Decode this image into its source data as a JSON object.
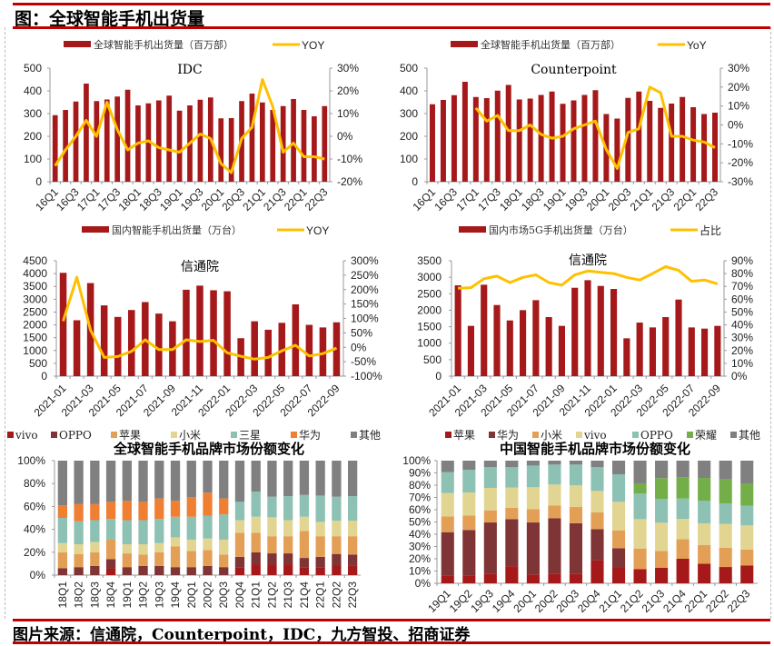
{
  "header": {
    "title": "图：全球智能手机出货量"
  },
  "footer": {
    "source": "图片来源：信通院，Counterpoint，IDC，九方智投、招商证券"
  },
  "colors": {
    "bar_red": "#A5191B",
    "line_yellow": "#FFC000",
    "frame_red": "#C00000",
    "vivo_global": "#A5191B",
    "oppo_global": "#7F3435",
    "apple_global": "#E49F56",
    "xiaomi_global": "#E2D592",
    "samsung_global": "#8CC1B4",
    "huawei_global": "#EE7F33",
    "other": "#808080",
    "honor": "#73AE49"
  },
  "chart_data": [
    {
      "id": "idc",
      "type": "bar+line",
      "title": "IDC",
      "legend": [
        "全球智能手机出货量（百万部）",
        "YOY"
      ],
      "categories": [
        "16Q1",
        "16Q2",
        "16Q3",
        "16Q4",
        "17Q1",
        "17Q2",
        "17Q3",
        "17Q4",
        "18Q1",
        "18Q2",
        "18Q3",
        "18Q4",
        "19Q1",
        "19Q2",
        "19Q3",
        "19Q4",
        "20Q1",
        "20Q2",
        "20Q3",
        "20Q4",
        "21Q1",
        "21Q2",
        "21Q3",
        "21Q4",
        "22Q1",
        "22Q2",
        "22Q3"
      ],
      "x_tick_labels": [
        "16Q1",
        "16Q3",
        "17Q1",
        "17Q3",
        "18Q1",
        "18Q3",
        "19Q1",
        "19Q3",
        "20Q1",
        "20Q3",
        "21Q1",
        "21Q3",
        "22Q1",
        "22Q3"
      ],
      "series": [
        {
          "name": "全球智能手机出货量（百万部）",
          "axis": "left",
          "kind": "bar",
          "values": [
            293,
            316,
            353,
            432,
            355,
            362,
            375,
            405,
            336,
            345,
            358,
            379,
            313,
            336,
            361,
            371,
            279,
            280,
            355,
            388,
            349,
            316,
            333,
            364,
            316,
            288,
            333
          ]
        },
        {
          "name": "YOY",
          "axis": "right",
          "kind": "line",
          "unit": "%",
          "values": [
            -13,
            -6,
            0,
            7,
            0,
            15,
            3,
            -6,
            -3,
            -2,
            -5,
            -6,
            -7,
            -3,
            1,
            -1,
            -12,
            -16,
            -1,
            4,
            25,
            13,
            -7,
            -3,
            -9,
            -9,
            -10
          ]
        }
      ],
      "ylim_left": [
        0,
        500
      ],
      "yticks_left": [
        "0",
        "100",
        "200",
        "300",
        "400",
        "500"
      ],
      "ylim_right": [
        -20,
        30
      ],
      "yticks_right": [
        "-20%",
        "-10%",
        "0%",
        "10%",
        "20%",
        "30%"
      ]
    },
    {
      "id": "counterpoint",
      "type": "bar+line",
      "title": "Counterpoint",
      "legend": [
        "全球智能手机出货量（百万部）",
        "YoY"
      ],
      "categories": [
        "16Q1",
        "16Q2",
        "16Q3",
        "16Q4",
        "17Q1",
        "17Q2",
        "17Q3",
        "17Q4",
        "18Q1",
        "18Q2",
        "18Q3",
        "18Q4",
        "19Q1",
        "19Q2",
        "19Q3",
        "19Q4",
        "20Q1",
        "20Q2",
        "20Q3",
        "20Q4",
        "21Q1",
        "21Q2",
        "21Q3",
        "21Q4",
        "22Q1",
        "22Q2",
        "22Q3"
      ],
      "x_tick_labels": [
        "16Q1",
        "16Q3",
        "17Q1",
        "17Q3",
        "18Q1",
        "18Q3",
        "19Q1",
        "19Q3",
        "20Q1",
        "20Q3",
        "21Q1",
        "21Q3",
        "22Q1",
        "22Q3"
      ],
      "series": [
        {
          "name": "全球智能手机出货量（百万部）",
          "axis": "left",
          "kind": "bar",
          "values": [
            341,
            360,
            381,
            440,
            373,
            368,
            401,
            426,
            362,
            366,
            382,
            397,
            343,
            358,
            382,
            403,
            298,
            278,
            369,
            397,
            356,
            325,
            344,
            373,
            328,
            298,
            304
          ]
        },
        {
          "name": "YoY",
          "axis": "right",
          "kind": "line",
          "unit": "%",
          "values": [
            null,
            null,
            null,
            null,
            9,
            2,
            5,
            -3,
            -3,
            0,
            -5,
            -7,
            -6,
            -2,
            0,
            2,
            -13,
            -23,
            -4,
            -2,
            20,
            17,
            -6,
            -6,
            -8,
            -9,
            -12
          ]
        }
      ],
      "ylim_left": [
        0,
        500
      ],
      "yticks_left": [
        "0",
        "100",
        "200",
        "300",
        "400",
        "500"
      ],
      "ylim_right": [
        -30,
        30
      ],
      "yticks_right": [
        "-30%",
        "-20%",
        "-10%",
        "0%",
        "10%",
        "20%",
        "30%"
      ]
    },
    {
      "id": "caict_domestic",
      "type": "bar+line",
      "title": "信通院",
      "legend": [
        "国内智能手机出货量（万台）",
        "YOY"
      ],
      "categories": [
        "2021-01",
        "2021-02",
        "2021-03",
        "2021-04",
        "2021-05",
        "2021-06",
        "2021-07",
        "2021-08",
        "2021-09",
        "2021-10",
        "2021-11",
        "2021-12",
        "2022-01",
        "2022-02",
        "2022-03",
        "2022-04",
        "2022-05",
        "2022-06",
        "2022-07",
        "2022-08",
        "2022-09"
      ],
      "x_tick_labels": [
        "2021-01",
        "2021-03",
        "2021-05",
        "2021-07",
        "2021-09",
        "2021-11",
        "2022-01",
        "2022-03",
        "2022-05",
        "2022-07",
        "2022-09"
      ],
      "series": [
        {
          "name": "国内智能手机出货量（万台）",
          "axis": "left",
          "kind": "bar",
          "values": [
            4030,
            2180,
            3630,
            2760,
            2310,
            2580,
            2890,
            2440,
            2140,
            3370,
            3530,
            3350,
            3310,
            1480,
            2140,
            1810,
            2080,
            2800,
            2000,
            1900,
            2100
          ]
        },
        {
          "name": "YOY",
          "axis": "right",
          "kind": "line",
          "unit": "%",
          "values": [
            91,
            243,
            60,
            -35,
            -32,
            -14,
            26,
            -8,
            -8,
            26,
            20,
            24,
            -19,
            -31,
            -41,
            -35,
            -12,
            7,
            -30,
            -22,
            -3
          ]
        }
      ],
      "ylim_left": [
        0,
        4500
      ],
      "yticks_left": [
        "0",
        "500",
        "1000",
        "1500",
        "2000",
        "2500",
        "3000",
        "3500",
        "4000",
        "4500"
      ],
      "ylim_right": [
        -100,
        300
      ],
      "yticks_right": [
        "-100%",
        "-50%",
        "0%",
        "50%",
        "100%",
        "150%",
        "200%",
        "250%",
        "300%"
      ]
    },
    {
      "id": "caict_5g",
      "type": "bar+line",
      "title": "信通院",
      "legend": [
        "国内市场5G手机出货量（万台）",
        "占比"
      ],
      "categories": [
        "2021-01",
        "2021-02",
        "2021-03",
        "2021-04",
        "2021-05",
        "2021-06",
        "2021-07",
        "2021-08",
        "2021-09",
        "2021-10",
        "2021-11",
        "2021-12",
        "2022-01",
        "2022-02",
        "2022-03",
        "2022-04",
        "2022-05",
        "2022-06",
        "2022-07",
        "2022-08",
        "2022-09"
      ],
      "x_tick_labels": [
        "2021-01",
        "2021-03",
        "2021-05",
        "2021-07",
        "2021-09",
        "2021-11",
        "2022-01",
        "2022-03",
        "2022-05",
        "2022-07",
        "2022-09"
      ],
      "series": [
        {
          "name": "国内市场5G手机出货量（万台）",
          "axis": "left",
          "kind": "bar",
          "values": [
            2755,
            1525,
            2773,
            2158,
            1690,
            2002,
            2305,
            1791,
            1525,
            2681,
            2911,
            2736,
            2645,
            1148,
            1625,
            1478,
            1791,
            2323,
            1478,
            1442,
            1525
          ]
        },
        {
          "name": "占比",
          "axis": "right",
          "kind": "line",
          "unit": "%",
          "values": [
            68.5,
            69,
            76,
            78,
            73,
            77,
            79,
            73,
            71,
            79,
            82,
            81,
            80,
            77,
            75,
            80,
            85.5,
            82.5,
            74,
            75,
            72
          ]
        }
      ],
      "ylim_left": [
        0,
        3500
      ],
      "yticks_left": [
        "0",
        "500",
        "1000",
        "1500",
        "2000",
        "2500",
        "3000",
        "3500"
      ],
      "ylim_right": [
        0,
        90
      ],
      "yticks_right": [
        "0%",
        "10%",
        "20%",
        "30%",
        "40%",
        "50%",
        "60%",
        "70%",
        "80%",
        "90%"
      ]
    },
    {
      "id": "global_brand_share",
      "type": "stacked_bar",
      "title": "全球智能手机品牌市场份额变化",
      "categories": [
        "18Q1",
        "18Q2",
        "18Q3",
        "18Q4",
        "19Q1",
        "19Q2",
        "19Q3",
        "19Q4",
        "20Q1",
        "20Q2",
        "20Q3",
        "20Q4",
        "21Q1",
        "21Q2",
        "21Q3",
        "21Q4",
        "22Q1",
        "22Q2",
        "22Q3"
      ],
      "series": [
        {
          "name": "vivo",
          "color_key": "vivo_global",
          "values": [
            0,
            0,
            0,
            6,
            0,
            0,
            0,
            0,
            0,
            0,
            0,
            7,
            9.5,
            9.5,
            9.5,
            7,
            7,
            8.7,
            8
          ]
        },
        {
          "name": "OPPO",
          "color_key": "oppo_global",
          "values": [
            6,
            7,
            8,
            8,
            7,
            8,
            8,
            7,
            7,
            8,
            7,
            9,
            10.5,
            9.5,
            9.5,
            8,
            9,
            9.8,
            10
          ]
        },
        {
          "name": "苹果",
          "color_key": "apple_global",
          "values": [
            14,
            11.5,
            12,
            17,
            12,
            10,
            12,
            18,
            14,
            14,
            11,
            21,
            17,
            15,
            15,
            23.6,
            18,
            15.5,
            16
          ]
        },
        {
          "name": "小米",
          "color_key": "xiaomi_global",
          "values": [
            8,
            8.5,
            9,
            0,
            8,
            9,
            8,
            8,
            10,
            10,
            13,
            11,
            14,
            16.5,
            14,
            12.4,
            12.5,
            13.6,
            13.6
          ]
        },
        {
          "name": "三星",
          "color_key": "samsung_global",
          "values": [
            22,
            20,
            19,
            18,
            21,
            21,
            21,
            18,
            20,
            20,
            22,
            16,
            22,
            18,
            21,
            19,
            23,
            20.9,
            21.4
          ]
        },
        {
          "name": "华为",
          "color_key": "huawei_global",
          "values": [
            11,
            15,
            14,
            15,
            17,
            16,
            18,
            14,
            17,
            20,
            14,
            0,
            0,
            0,
            0,
            0,
            0,
            0,
            0
          ]
        },
        {
          "name": "其他",
          "color_key": "other",
          "values": [
            39,
            38,
            38,
            36,
            35,
            36,
            33,
            35,
            32,
            28,
            33,
            36,
            27,
            31.5,
            31,
            30,
            30.5,
            31.5,
            31
          ]
        }
      ],
      "ylim": [
        0,
        100
      ],
      "yticks": [
        "0%",
        "20%",
        "40%",
        "60%",
        "80%",
        "100%"
      ]
    },
    {
      "id": "china_brand_share",
      "type": "stacked_bar",
      "title": "中国智能手机品牌市场份额变化",
      "categories": [
        "19Q1",
        "19Q2",
        "19Q3",
        "19Q4",
        "20Q1",
        "20Q2",
        "20Q3",
        "20Q4",
        "21Q1",
        "21Q2",
        "21Q3",
        "21Q4",
        "22Q1",
        "22Q2",
        "22Q3"
      ],
      "series": [
        {
          "name": "苹果",
          "color_key": "vivo_global",
          "values": [
            6.4,
            6.4,
            7.9,
            14,
            7.2,
            7.9,
            7.9,
            18.8,
            12.6,
            11.6,
            12.6,
            20,
            16,
            13.3,
            14.6
          ]
        },
        {
          "name": "华为",
          "color_key": "oppo_global",
          "values": [
            35.3,
            37.1,
            41.7,
            38.3,
            42.4,
            45.1,
            41.1,
            25.4,
            16,
            0,
            0,
            0,
            0,
            0,
            0
          ]
        },
        {
          "name": "小米",
          "color_key": "apple_global",
          "values": [
            12.9,
            11.8,
            9.9,
            9.2,
            10.9,
            10.5,
            13.2,
            13.6,
            14.6,
            16.8,
            13.8,
            16,
            15.1,
            15.8,
            12.8
          ]
        },
        {
          "name": "vivo",
          "color_key": "xiaomi_global",
          "values": [
            19,
            18.7,
            18.3,
            16.5,
            17.8,
            17,
            17.6,
            17.5,
            23.2,
            23.9,
            23,
            16.6,
            17.8,
            19.3,
            19.8
          ]
        },
        {
          "name": "OPPO",
          "color_key": "samsung_global",
          "values": [
            17,
            18.6,
            16.8,
            16.6,
            17.7,
            16.3,
            17,
            19.3,
            22.5,
            21,
            19.5,
            16.5,
            18.5,
            16.8,
            16
          ]
        },
        {
          "name": "荣耀",
          "color_key": "honor",
          "values": [
            0,
            0,
            0,
            0,
            0,
            0,
            0,
            0,
            0,
            8.2,
            16.8,
            17.3,
            18.5,
            19.5,
            18.3
          ]
        },
        {
          "name": "其他",
          "color_key": "other",
          "values": [
            9.4,
            7.4,
            5.4,
            5.4,
            4,
            3.2,
            3.2,
            5.4,
            11.1,
            18.5,
            14.3,
            13.6,
            14.1,
            15.3,
            18.5
          ]
        }
      ],
      "ylim": [
        0,
        100
      ],
      "yticks": [
        "0%",
        "10%",
        "20%",
        "30%",
        "40%",
        "50%",
        "60%",
        "70%",
        "80%",
        "90%",
        "100%"
      ]
    }
  ]
}
